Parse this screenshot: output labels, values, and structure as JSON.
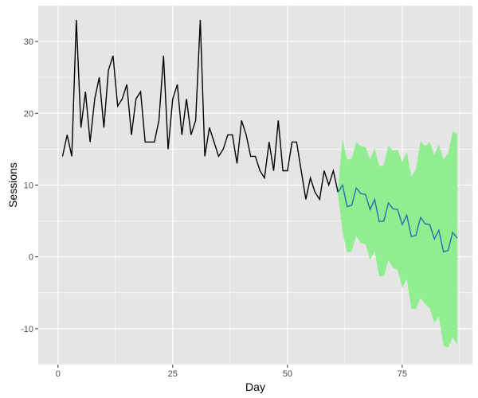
{
  "chart_data": {
    "type": "line",
    "title": "",
    "xlabel": "Day",
    "ylabel": "Sessions",
    "xlim": [
      -4.3,
      90.3
    ],
    "ylim": [
      -15,
      35
    ],
    "xticks": [
      0,
      25,
      50,
      75
    ],
    "yticks": [
      -10,
      0,
      10,
      20,
      30
    ],
    "grid": true,
    "legend": "none",
    "colors": {
      "panel": "#e5e5e5",
      "grid": "#ffffff",
      "observed": "#000000",
      "forecast": "#2b6cb0",
      "interval": "#90ee90"
    },
    "series": [
      {
        "role": "observed",
        "x": [
          1,
          2,
          3,
          4,
          5,
          6,
          7,
          8,
          9,
          10,
          11,
          12,
          13,
          14,
          15,
          16,
          17,
          18,
          19,
          20,
          21,
          22,
          23,
          24,
          25,
          26,
          27,
          28,
          29,
          30,
          31,
          32,
          33,
          34,
          35,
          36,
          37,
          38,
          39,
          40,
          41,
          42,
          43,
          44,
          45,
          46,
          47,
          48,
          49,
          50,
          51,
          52,
          53,
          54,
          55,
          56,
          57,
          58,
          59,
          60,
          61
        ],
        "y": [
          14,
          17,
          14,
          33,
          18,
          23,
          16,
          22,
          25,
          18,
          26,
          28,
          21,
          22,
          24,
          17,
          22,
          23,
          16,
          16,
          16,
          19,
          28,
          15,
          22,
          24,
          17,
          22,
          17,
          19,
          33,
          14,
          18,
          16,
          14,
          15,
          17,
          17,
          13,
          19,
          17,
          14,
          14,
          12,
          11,
          16,
          12,
          19,
          12,
          12,
          16,
          16,
          12,
          8,
          11,
          9,
          8,
          12,
          10,
          12,
          9
        ]
      },
      {
        "role": "forecast",
        "x": [
          61,
          62,
          63,
          64,
          65,
          66,
          67,
          68,
          69,
          70,
          71,
          72,
          73,
          74,
          75,
          76,
          77,
          78,
          79,
          80,
          81,
          82,
          83,
          84,
          85,
          86,
          87
        ],
        "y": [
          9,
          10,
          7,
          7.2,
          9.6,
          8.8,
          8.7,
          6.6,
          8,
          4.9,
          5,
          7.5,
          6.7,
          6.6,
          4.5,
          5.8,
          2.8,
          3,
          5.5,
          4.6,
          4.5,
          2.5,
          3.7,
          0.7,
          0.9,
          3.4,
          2.6
        ],
        "lower": [
          8.7,
          3.5,
          0.6,
          0.8,
          2.9,
          1.9,
          1.8,
          -0.4,
          0.8,
          -2.7,
          -2.7,
          -0.5,
          -1.5,
          -1.8,
          -4.3,
          -3.1,
          -7.2,
          -7.3,
          -5.7,
          -6.6,
          -7.1,
          -9.2,
          -8.2,
          -12.4,
          -12.6,
          -11.2,
          -12.2
        ],
        "upper": [
          9.5,
          16.5,
          13.5,
          13.7,
          16,
          15.4,
          15.3,
          13.6,
          15.2,
          12.6,
          12.8,
          15.5,
          14.8,
          14.9,
          13.2,
          14.6,
          11.2,
          12.2,
          16.1,
          15.4,
          16,
          14.2,
          15.6,
          13.6,
          14.4,
          17.5,
          17.1
        ]
      }
    ]
  }
}
